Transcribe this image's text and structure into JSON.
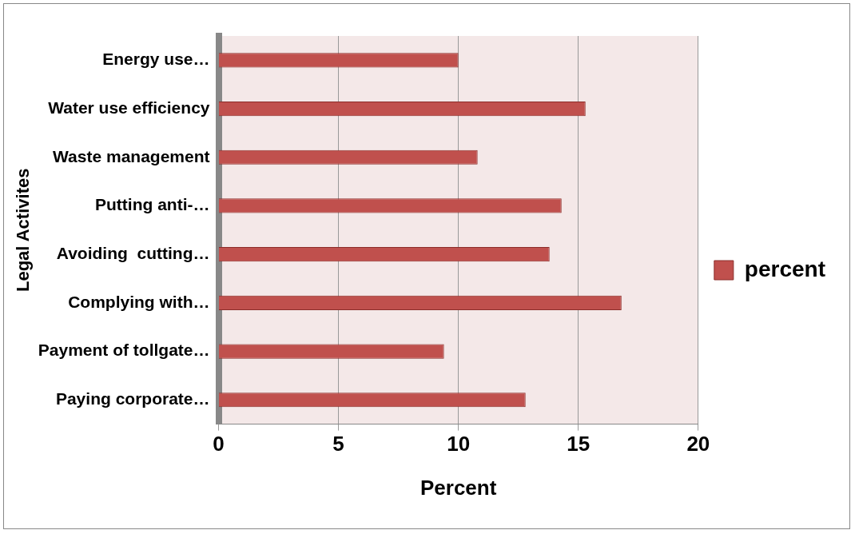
{
  "chart_data": {
    "type": "bar",
    "orientation": "horizontal",
    "categories": [
      "Energy use…",
      "Water use efficiency",
      "Waste management",
      "Putting anti-…",
      "Avoiding  cutting…",
      "Complying with…",
      "Payment of tollgate…",
      "Paying corporate…"
    ],
    "series": [
      {
        "name": "percent",
        "color": "#c0504d",
        "values": [
          10,
          15.3,
          10.8,
          14.3,
          13.8,
          16.8,
          9.4,
          12.8
        ]
      }
    ],
    "xlim": [
      0,
      20
    ],
    "xticks": [
      0,
      5,
      10,
      15,
      20
    ],
    "xlabel": "Percent",
    "ylabel": "Legal Activites",
    "grid": "x",
    "legend": "right"
  }
}
